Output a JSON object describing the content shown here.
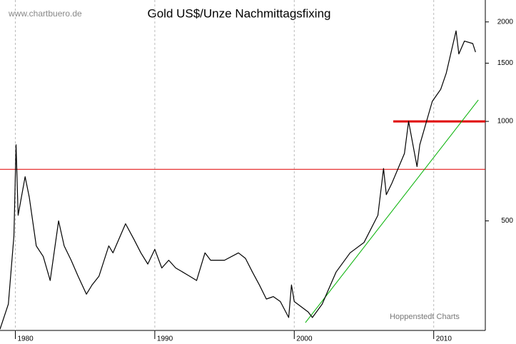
{
  "chart_data": {
    "type": "line",
    "title": "Gold US$/Unze Nachmittagsfixing",
    "source": "www.chartbuero.de",
    "credit": "Hoppenstedt Charts",
    "log_scale": true,
    "grid": "x",
    "xlim": [
      1978.9,
      2013.7
    ],
    "xticks": [
      1980,
      1990,
      2000,
      2010
    ],
    "ylim": [
      233,
      2330
    ],
    "yticks": [
      500,
      1000,
      1500,
      2000
    ],
    "series": [
      {
        "name": "Gold",
        "color": "#000000",
        "x": [
          1978.9,
          1979.5,
          1979.9,
          1980.05,
          1980.2,
          1980.7,
          1981.0,
          1981.5,
          1982.0,
          1982.5,
          1983.1,
          1983.5,
          1984.0,
          1984.5,
          1985.1,
          1985.5,
          1986.0,
          1986.7,
          1987.0,
          1987.9,
          1988.5,
          1989.0,
          1989.5,
          1990.0,
          1990.5,
          1991.0,
          1991.5,
          1992.0,
          1992.5,
          1993.0,
          1993.6,
          1994.0,
          1995.0,
          1996.0,
          1996.5,
          1997.0,
          1997.5,
          1998.0,
          1998.5,
          1999.0,
          1999.6,
          1999.8,
          2000.0,
          2001.0,
          2001.3,
          2002.0,
          2003.0,
          2004.0,
          2005.0,
          2006.0,
          2006.4,
          2006.6,
          2007.0,
          2007.9,
          2008.2,
          2008.8,
          2009.0,
          2009.9,
          2010.5,
          2010.9,
          2011.6,
          2011.8,
          2012.2,
          2012.8,
          2013.0
        ],
        "values": [
          235,
          280,
          450,
          850,
          520,
          680,
          590,
          420,
          390,
          330,
          500,
          420,
          380,
          340,
          300,
          320,
          340,
          420,
          400,
          490,
          440,
          400,
          370,
          410,
          360,
          380,
          360,
          350,
          340,
          330,
          400,
          380,
          380,
          400,
          385,
          350,
          320,
          290,
          295,
          285,
          255,
          320,
          285,
          265,
          255,
          280,
          350,
          400,
          430,
          520,
          720,
          600,
          650,
          800,
          1000,
          730,
          850,
          1150,
          1250,
          1400,
          1880,
          1600,
          1750,
          1720,
          1620
        ]
      }
    ],
    "hlines": [
      {
        "value": 716,
        "color": "#e00000",
        "width": 1
      },
      {
        "value": 1000,
        "color": "#e00000",
        "width": 3,
        "x": [
          2007.1,
          2013.7
        ]
      }
    ],
    "trendline": {
      "color": "#00b000",
      "x": [
        2000.8,
        2013.2
      ],
      "values": [
        246,
        1161
      ]
    }
  }
}
